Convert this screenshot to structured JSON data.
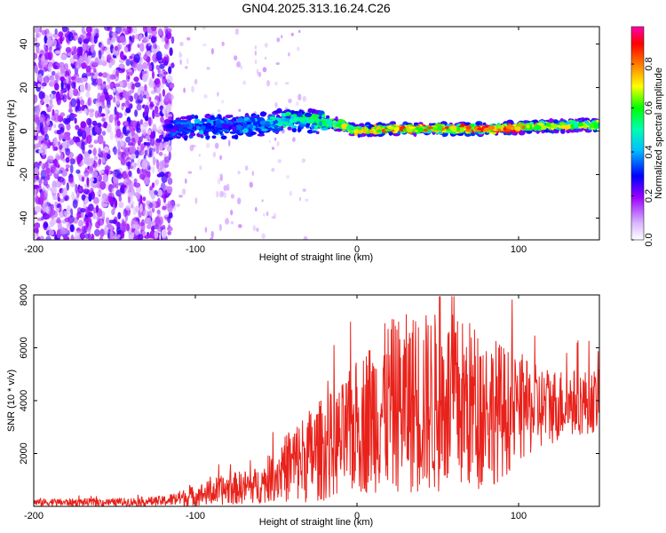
{
  "chart_data": [
    {
      "type": "heatmap",
      "title": "GN04.2025.313.16.24.C26",
      "xlabel": "Height of straight line (km)",
      "ylabel": "Frequency (Hz)",
      "xlim": [
        -200,
        150
      ],
      "ylim": [
        -50,
        48
      ],
      "x_ticks": [
        "-200",
        "-100",
        "0",
        "100"
      ],
      "y_ticks": [
        "-40",
        "-20",
        "0",
        "20",
        "40"
      ],
      "colorbar": {
        "label": "Normalized spectral amplitude",
        "range": [
          0,
          0.97
        ],
        "ticks": [
          "0.0",
          "0.2",
          "0.4",
          "0.6",
          "0.8"
        ],
        "colors": [
          "#ffffff",
          "#9b00ff",
          "#0000ff",
          "#00ffff",
          "#00ff00",
          "#ffff00",
          "#ff7f00",
          "#ff0000",
          "#ff00ff"
        ]
      },
      "noise_region_km": [
        -200,
        -118
      ],
      "signal_track": {
        "x": [
          -118,
          -100,
          -80,
          -60,
          -45,
          -35,
          -20,
          -10,
          0,
          20,
          50,
          80,
          110,
          150
        ],
        "center_hz": [
          1,
          2,
          2,
          3,
          5,
          5,
          4,
          3,
          0,
          1,
          1,
          1,
          2,
          3
        ],
        "peak_amplitude": [
          0.3,
          0.4,
          0.35,
          0.45,
          0.55,
          0.6,
          0.6,
          0.75,
          0.85,
          0.9,
          0.9,
          0.95,
          0.85,
          0.7
        ]
      }
    },
    {
      "type": "line",
      "xlabel": "Height of straight line (km)",
      "ylabel": "SNR (10 * v/v)",
      "xlim": [
        -200,
        150
      ],
      "ylim": [
        0,
        8000
      ],
      "x_ticks": [
        "-200",
        "-100",
        "0",
        "100"
      ],
      "y_ticks": [
        "2000",
        "4000",
        "6000",
        "8000"
      ],
      "color": "#e8221b",
      "envelope": {
        "x": [
          -200,
          -150,
          -120,
          -100,
          -80,
          -60,
          -50,
          -40,
          -30,
          -20,
          -10,
          0,
          10,
          20,
          30,
          40,
          50,
          60,
          70,
          80,
          90,
          100,
          110,
          120,
          130,
          150
        ],
        "mean": [
          150,
          150,
          200,
          400,
          650,
          800,
          1200,
          1600,
          1900,
          2200,
          2500,
          3000,
          3500,
          3800,
          3900,
          3900,
          3900,
          3900,
          3800,
          3700,
          3600,
          3600,
          3700,
          3800,
          3900,
          4000
        ],
        "amp": [
          150,
          150,
          200,
          400,
          600,
          700,
          1000,
          1500,
          1800,
          2000,
          2100,
          2600,
          3000,
          3300,
          3400,
          3500,
          3500,
          3400,
          3300,
          3000,
          2600,
          2000,
          1700,
          1500,
          1300,
          1200
        ]
      }
    }
  ]
}
